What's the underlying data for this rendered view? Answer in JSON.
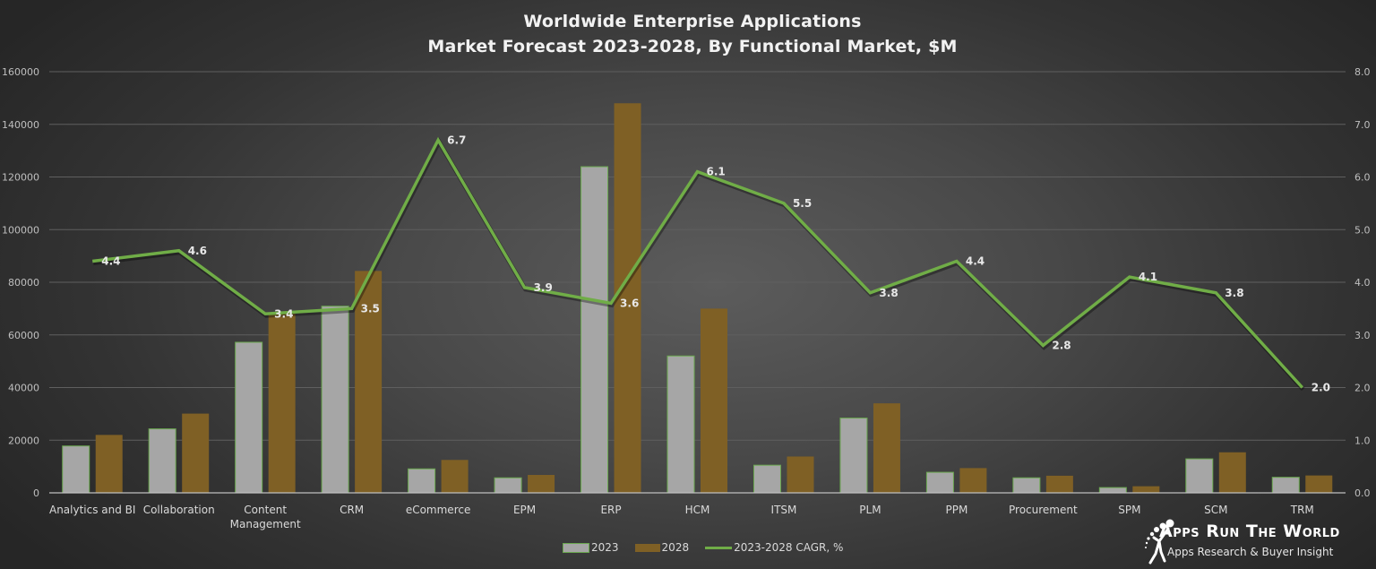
{
  "title": {
    "line1": "Worldwide Enterprise Applications",
    "line2": "Market Forecast 2023-2028, By Functional Market, $M"
  },
  "colors": {
    "bar_2023": "#a6a6a6",
    "bar_2023_border": "#6aa84f",
    "bar_2028": "#7f6025",
    "line_cagr": "#70ad47",
    "gridline": "#5f5f5f",
    "axis_line": "#bfbfbf"
  },
  "legend": {
    "items": [
      {
        "label": "2023",
        "type": "bar",
        "color": "#a6a6a6"
      },
      {
        "label": "2028",
        "type": "bar",
        "color": "#7f6025"
      },
      {
        "label": "2023-2028 CAGR, %",
        "type": "line",
        "color": "#70ad47"
      }
    ]
  },
  "logo": {
    "title": "Apps Run The World",
    "subtitle": "Apps Research & Buyer Insight"
  },
  "chart_data": {
    "type": "bar",
    "combo": "bar+line (secondary axis)",
    "title": "Worldwide Enterprise Applications Market Forecast 2023-2028, By Functional Market, $M",
    "xlabel": "",
    "ylabel": "$M",
    "y2label": "CAGR %",
    "categories": [
      "Analytics and BI",
      "Collaboration",
      "Content Management",
      "CRM",
      "eCommerce",
      "EPM",
      "ERP",
      "HCM",
      "ITSM",
      "PLM",
      "PPM",
      "Procurement",
      "SPM",
      "SCM",
      "TRM"
    ],
    "series": [
      {
        "name": "2023",
        "type": "bar",
        "axis": "left",
        "values": [
          17800,
          24300,
          57200,
          70900,
          9100,
          5700,
          123900,
          52000,
          10500,
          28400,
          7800,
          5700,
          2000,
          12900,
          5900
        ]
      },
      {
        "name": "2028",
        "type": "bar",
        "axis": "left",
        "values": [
          22000,
          30100,
          68000,
          84300,
          12500,
          6800,
          148000,
          70000,
          13800,
          34000,
          9400,
          6500,
          2500,
          15400,
          6600
        ]
      },
      {
        "name": "2023-2028 CAGR, %",
        "type": "line",
        "axis": "right",
        "values": [
          4.4,
          4.6,
          3.4,
          3.5,
          6.7,
          3.9,
          3.6,
          6.1,
          5.5,
          3.8,
          4.4,
          2.8,
          4.1,
          3.8,
          2.0
        ],
        "data_labels": [
          "4.4",
          "4.6",
          "3.4",
          "3.5",
          "6.7",
          "3.9",
          "3.6",
          "6.1",
          "5.5",
          "3.8",
          "4.4",
          "2.8",
          "4.1",
          "3.8",
          "2.0"
        ]
      }
    ],
    "ylim": [
      0,
      160000
    ],
    "y_ticks": [
      "0",
      "20000",
      "40000",
      "60000",
      "80000",
      "100000",
      "120000",
      "140000",
      "160000"
    ],
    "y2lim": [
      0,
      8
    ],
    "y2_ticks": [
      "0.0",
      "1.0",
      "2.0",
      "3.0",
      "4.0",
      "5.0",
      "6.0",
      "7.0",
      "8.0"
    ],
    "grid": true,
    "legend_position": "bottom"
  }
}
